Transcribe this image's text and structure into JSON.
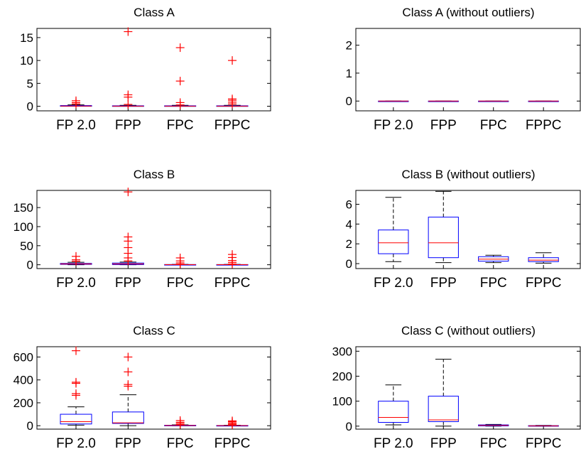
{
  "chart_data": [
    {
      "type": "boxplot",
      "title": "Class A",
      "categories": [
        "FP 2.0",
        "FPP",
        "FPC",
        "FPPC"
      ],
      "ylim": [
        -1,
        17
      ],
      "yticks": [
        0,
        5,
        10,
        15
      ],
      "boxes": [
        {
          "lower_whisker": 0,
          "q1": 0,
          "median": 0.05,
          "q3": 0.15,
          "upper_whisker": 0.3,
          "outliers": [
            0.5,
            0.8,
            1.2
          ]
        },
        {
          "lower_whisker": 0,
          "q1": 0,
          "median": 0.02,
          "q3": 0.1,
          "upper_whisker": 0.2,
          "outliers": [
            0.4,
            2.0,
            2.5,
            16.3
          ]
        },
        {
          "lower_whisker": 0,
          "q1": 0,
          "median": 0.02,
          "q3": 0.1,
          "upper_whisker": 0.2,
          "outliers": [
            0.3,
            0.8,
            5.5,
            12.8
          ]
        },
        {
          "lower_whisker": 0,
          "q1": 0,
          "median": 0.02,
          "q3": 0.1,
          "upper_whisker": 0.2,
          "outliers": [
            0.5,
            0.9,
            1.3,
            1.6,
            10.0
          ]
        }
      ]
    },
    {
      "type": "boxplot",
      "title": "Class A (without outliers)",
      "categories": [
        "FP 2.0",
        "FPP",
        "FPC",
        "FPPC"
      ],
      "ylim": [
        -0.35,
        2.6
      ],
      "yticks": [
        0,
        1,
        2
      ],
      "boxes": [
        {
          "lower_whisker": 0,
          "q1": 0,
          "median": 0,
          "q3": 0,
          "upper_whisker": 0,
          "outliers": []
        },
        {
          "lower_whisker": 0,
          "q1": 0,
          "median": 0,
          "q3": 0,
          "upper_whisker": 0,
          "outliers": []
        },
        {
          "lower_whisker": 0,
          "q1": 0,
          "median": 0,
          "q3": 0,
          "upper_whisker": 0,
          "outliers": []
        },
        {
          "lower_whisker": 0,
          "q1": 0,
          "median": 0,
          "q3": 0,
          "upper_whisker": 0,
          "outliers": []
        }
      ]
    },
    {
      "type": "boxplot",
      "title": "Class B",
      "categories": [
        "FP 2.0",
        "FPP",
        "FPC",
        "FPPC"
      ],
      "ylim": [
        -10,
        195
      ],
      "yticks": [
        0,
        50,
        100,
        150
      ],
      "boxes": [
        {
          "lower_whisker": 0,
          "q1": 1,
          "median": 2,
          "q3": 3.5,
          "upper_whisker": 6.5,
          "outliers": [
            9,
            13,
            22
          ]
        },
        {
          "lower_whisker": 0,
          "q1": 0.5,
          "median": 2,
          "q3": 4.5,
          "upper_whisker": 7,
          "outliers": [
            10,
            18,
            30,
            45,
            62,
            73,
            191
          ]
        },
        {
          "lower_whisker": 0,
          "q1": 0.1,
          "median": 0.3,
          "q3": 0.6,
          "upper_whisker": 0.9,
          "outliers": [
            1.5,
            5,
            10,
            18
          ]
        },
        {
          "lower_whisker": 0,
          "q1": 0.05,
          "median": 0.3,
          "q3": 0.5,
          "upper_whisker": 1.0,
          "outliers": [
            2,
            6,
            11,
            19,
            27
          ]
        }
      ]
    },
    {
      "type": "boxplot",
      "title": "Class B (without outliers)",
      "categories": [
        "FP 2.0",
        "FPP",
        "FPC",
        "FPPC"
      ],
      "ylim": [
        -0.5,
        7.4
      ],
      "yticks": [
        0,
        2,
        4,
        6
      ],
      "boxes": [
        {
          "lower_whisker": 0.2,
          "q1": 1.0,
          "median": 2.1,
          "q3": 3.4,
          "upper_whisker": 6.7,
          "outliers": []
        },
        {
          "lower_whisker": 0.1,
          "q1": 0.6,
          "median": 2.1,
          "q3": 4.7,
          "upper_whisker": 7.3,
          "outliers": []
        },
        {
          "lower_whisker": 0.1,
          "q1": 0.25,
          "median": 0.45,
          "q3": 0.7,
          "upper_whisker": 0.85,
          "outliers": []
        },
        {
          "lower_whisker": 0.05,
          "q1": 0.2,
          "median": 0.35,
          "q3": 0.6,
          "upper_whisker": 1.1,
          "outliers": []
        }
      ]
    },
    {
      "type": "boxplot",
      "title": "Class C",
      "categories": [
        "FP 2.0",
        "FPP",
        "FPC",
        "FPPC"
      ],
      "ylim": [
        -30,
        690
      ],
      "yticks": [
        0,
        200,
        400,
        600
      ],
      "boxes": [
        {
          "lower_whisker": 5,
          "q1": 15,
          "median": 35,
          "q3": 100,
          "upper_whisker": 165,
          "outliers": [
            265,
            280,
            370,
            380,
            655
          ]
        },
        {
          "lower_whisker": 0,
          "q1": 20,
          "median": 25,
          "q3": 120,
          "upper_whisker": 270,
          "outliers": [
            345,
            360,
            470,
            600
          ]
        },
        {
          "lower_whisker": 0,
          "q1": 1,
          "median": 2,
          "q3": 4,
          "upper_whisker": 7,
          "outliers": [
            10,
            20,
            30,
            45
          ]
        },
        {
          "lower_whisker": 0,
          "q1": 0.5,
          "median": 1,
          "q3": 2,
          "upper_whisker": 4,
          "outliers": [
            8,
            15,
            25,
            35,
            42
          ]
        }
      ]
    },
    {
      "type": "boxplot",
      "title": "Class C (without outliers)",
      "categories": [
        "FP 2.0",
        "FPP",
        "FPC",
        "FPPC"
      ],
      "ylim": [
        -12,
        318
      ],
      "yticks": [
        0,
        100,
        200,
        300
      ],
      "boxes": [
        {
          "lower_whisker": 5,
          "q1": 15,
          "median": 35,
          "q3": 100,
          "upper_whisker": 165,
          "outliers": []
        },
        {
          "lower_whisker": 0,
          "q1": 18,
          "median": 25,
          "q3": 120,
          "upper_whisker": 268,
          "outliers": []
        },
        {
          "lower_whisker": 0,
          "q1": 1,
          "median": 3,
          "q3": 5,
          "upper_whisker": 7,
          "outliers": []
        },
        {
          "lower_whisker": 0,
          "q1": 0.5,
          "median": 1,
          "q3": 2,
          "upper_whisker": 3,
          "outliers": []
        }
      ]
    }
  ]
}
